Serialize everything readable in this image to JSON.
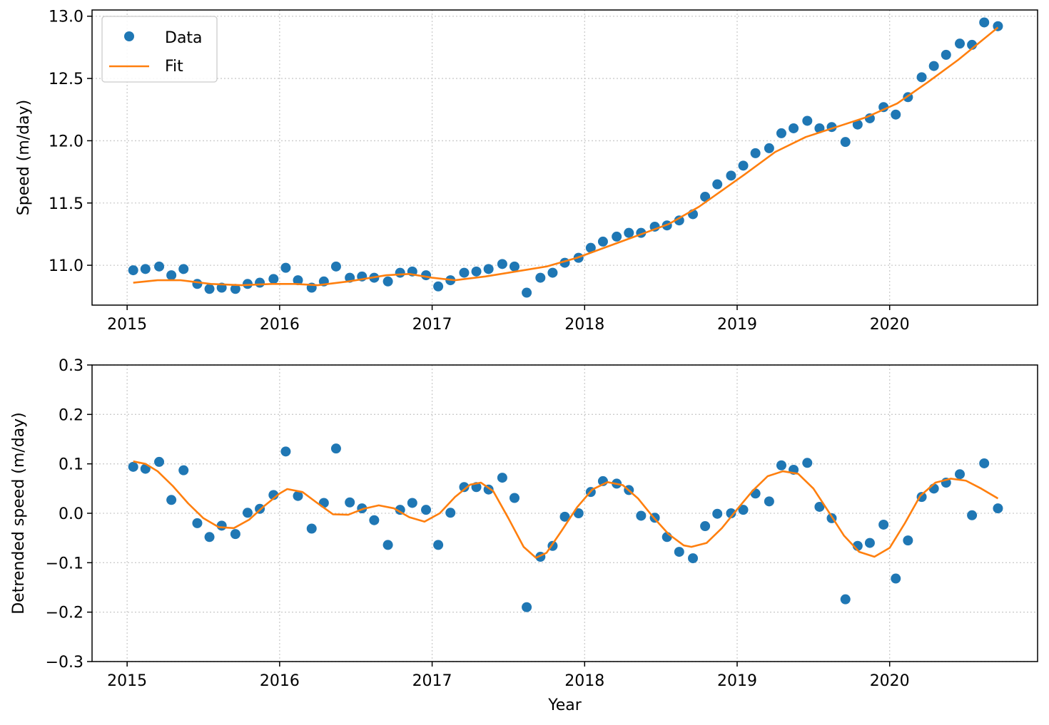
{
  "colors": {
    "data": "#1f77b4",
    "fit": "#ff7f0e",
    "grid": "#cccccc"
  },
  "chart_data": [
    {
      "type": "scatter",
      "title": "",
      "xlabel": "",
      "ylabel": "Speed (m/day)",
      "xlim": [
        2014.77,
        2020.97
      ],
      "ylim": [
        10.68,
        13.05
      ],
      "xticks": [
        2015,
        2016,
        2017,
        2018,
        2019,
        2020
      ],
      "yticks": [
        11.0,
        11.5,
        12.0,
        12.5,
        13.0
      ],
      "ytick_labels": [
        "11.0",
        "11.5",
        "12.0",
        "12.5",
        "13.0"
      ],
      "grid": true,
      "legend": {
        "position": "top-left",
        "entries": [
          "Data",
          "Fit"
        ]
      },
      "series": [
        {
          "name": "Data",
          "style": "markers",
          "x": [
            2015.04,
            2015.12,
            2015.21,
            2015.29,
            2015.37,
            2015.46,
            2015.54,
            2015.62,
            2015.71,
            2015.79,
            2015.87,
            2015.96,
            2016.04,
            2016.12,
            2016.21,
            2016.29,
            2016.37,
            2016.46,
            2016.54,
            2016.62,
            2016.71,
            2016.79,
            2016.87,
            2016.96,
            2017.04,
            2017.12,
            2017.21,
            2017.29,
            2017.37,
            2017.46,
            2017.54,
            2017.62,
            2017.71,
            2017.79,
            2017.87,
            2017.96,
            2018.04,
            2018.12,
            2018.21,
            2018.29,
            2018.37,
            2018.46,
            2018.54,
            2018.62,
            2018.71,
            2018.79,
            2018.87,
            2018.96,
            2019.04,
            2019.12,
            2019.21,
            2019.29,
            2019.37,
            2019.46,
            2019.54,
            2019.62,
            2019.71,
            2019.79,
            2019.87,
            2019.96,
            2020.04,
            2020.12,
            2020.21,
            2020.29,
            2020.37,
            2020.46,
            2020.54,
            2020.62,
            2020.71
          ],
          "y": [
            10.96,
            10.97,
            10.99,
            10.92,
            10.97,
            10.85,
            10.81,
            10.82,
            10.81,
            10.85,
            10.86,
            10.89,
            10.98,
            10.88,
            10.82,
            10.87,
            10.99,
            10.9,
            10.91,
            10.9,
            10.87,
            10.94,
            10.95,
            10.92,
            10.83,
            10.88,
            10.94,
            10.95,
            10.97,
            11.01,
            10.99,
            10.78,
            10.9,
            10.94,
            11.02,
            11.06,
            11.14,
            11.19,
            11.23,
            11.26,
            11.26,
            11.31,
            11.32,
            11.36,
            11.41,
            11.55,
            11.65,
            11.72,
            11.8,
            11.9,
            11.94,
            12.06,
            12.1,
            12.16,
            12.1,
            12.11,
            11.99,
            12.13,
            12.18,
            12.27,
            12.21,
            12.35,
            12.51,
            12.6,
            12.69,
            12.78,
            12.77,
            12.95,
            12.92
          ]
        },
        {
          "name": "Fit",
          "style": "line",
          "x": [
            2015.04,
            2015.2,
            2015.35,
            2015.55,
            2015.75,
            2015.95,
            2016.1,
            2016.25,
            2016.45,
            2016.7,
            2016.85,
            2017.0,
            2017.15,
            2017.35,
            2017.55,
            2017.75,
            2017.95,
            2018.15,
            2018.35,
            2018.55,
            2018.75,
            2018.9,
            2019.05,
            2019.25,
            2019.45,
            2019.65,
            2019.85,
            2020.05,
            2020.25,
            2020.45,
            2020.71
          ],
          "y": [
            10.86,
            10.88,
            10.88,
            10.85,
            10.84,
            10.85,
            10.85,
            10.84,
            10.87,
            10.92,
            10.93,
            10.9,
            10.88,
            10.91,
            10.95,
            10.99,
            11.06,
            11.15,
            11.24,
            11.33,
            11.47,
            11.6,
            11.73,
            11.91,
            12.03,
            12.11,
            12.19,
            12.3,
            12.47,
            12.65,
            12.91
          ]
        }
      ]
    },
    {
      "type": "scatter",
      "title": "",
      "xlabel": "Year",
      "ylabel": "Detrended speed (m/day)",
      "xlim": [
        2014.77,
        2020.97
      ],
      "ylim": [
        -0.3,
        0.3
      ],
      "xticks": [
        2015,
        2016,
        2017,
        2018,
        2019,
        2020
      ],
      "yticks": [
        -0.3,
        -0.2,
        -0.1,
        0.0,
        0.1,
        0.2,
        0.3
      ],
      "ytick_labels": [
        "−0.3",
        "−0.2",
        "−0.1",
        "0.0",
        "0.1",
        "0.2",
        "0.3"
      ],
      "grid": true,
      "series": [
        {
          "name": "Data",
          "style": "markers",
          "x": [
            2015.04,
            2015.12,
            2015.21,
            2015.29,
            2015.37,
            2015.46,
            2015.54,
            2015.62,
            2015.71,
            2015.79,
            2015.87,
            2015.96,
            2016.04,
            2016.12,
            2016.21,
            2016.29,
            2016.37,
            2016.46,
            2016.54,
            2016.62,
            2016.71,
            2016.79,
            2016.87,
            2016.96,
            2017.04,
            2017.12,
            2017.21,
            2017.29,
            2017.37,
            2017.46,
            2017.54,
            2017.62,
            2017.71,
            2017.79,
            2017.87,
            2017.96,
            2018.04,
            2018.12,
            2018.21,
            2018.29,
            2018.37,
            2018.46,
            2018.54,
            2018.62,
            2018.71,
            2018.79,
            2018.87,
            2018.96,
            2019.04,
            2019.12,
            2019.21,
            2019.29,
            2019.37,
            2019.46,
            2019.54,
            2019.62,
            2019.71,
            2019.79,
            2019.87,
            2019.96,
            2020.04,
            2020.12,
            2020.21,
            2020.29,
            2020.37,
            2020.46,
            2020.54,
            2020.62,
            2020.71
          ],
          "y": [
            0.094,
            0.09,
            0.104,
            0.027,
            0.087,
            -0.02,
            -0.048,
            -0.025,
            -0.042,
            0.001,
            0.009,
            0.037,
            0.125,
            0.035,
            -0.031,
            0.021,
            0.131,
            0.022,
            0.01,
            -0.014,
            -0.064,
            0.007,
            0.021,
            0.007,
            -0.064,
            0.001,
            0.053,
            0.053,
            0.048,
            0.072,
            0.031,
            -0.19,
            -0.088,
            -0.066,
            -0.007,
            0.0,
            0.043,
            0.065,
            0.06,
            0.047,
            -0.005,
            -0.009,
            -0.048,
            -0.078,
            -0.091,
            -0.026,
            -0.001,
            0.0,
            0.007,
            0.04,
            0.024,
            0.097,
            0.088,
            0.102,
            0.013,
            -0.01,
            -0.174,
            -0.066,
            -0.06,
            -0.023,
            -0.132,
            -0.055,
            0.033,
            0.05,
            0.062,
            0.079,
            -0.004,
            0.101,
            0.01
          ]
        },
        {
          "name": "Fit",
          "style": "line",
          "x": [
            2015.04,
            2015.12,
            2015.2,
            2015.3,
            2015.4,
            2015.5,
            2015.6,
            2015.7,
            2015.8,
            2015.9,
            2016.0,
            2016.05,
            2016.15,
            2016.25,
            2016.35,
            2016.45,
            2016.55,
            2016.65,
            2016.75,
            2016.85,
            2016.95,
            2017.05,
            2017.15,
            2017.25,
            2017.32,
            2017.4,
            2017.5,
            2017.6,
            2017.68,
            2017.75,
            2017.85,
            2017.95,
            2018.05,
            2018.15,
            2018.25,
            2018.35,
            2018.45,
            2018.55,
            2018.65,
            2018.7,
            2018.8,
            2018.9,
            2019.0,
            2019.1,
            2019.2,
            2019.3,
            2019.4,
            2019.5,
            2019.6,
            2019.7,
            2019.8,
            2019.9,
            2020.0,
            2020.1,
            2020.2,
            2020.3,
            2020.4,
            2020.5,
            2020.6,
            2020.71
          ],
          "y": [
            0.105,
            0.1,
            0.085,
            0.055,
            0.02,
            -0.01,
            -0.028,
            -0.03,
            -0.013,
            0.015,
            0.04,
            0.049,
            0.043,
            0.02,
            -0.002,
            -0.003,
            0.009,
            0.016,
            0.01,
            -0.008,
            -0.017,
            0.0,
            0.033,
            0.058,
            0.062,
            0.045,
            -0.01,
            -0.068,
            -0.09,
            -0.08,
            -0.035,
            0.012,
            0.048,
            0.063,
            0.057,
            0.03,
            -0.008,
            -0.042,
            -0.065,
            -0.068,
            -0.06,
            -0.03,
            0.008,
            0.045,
            0.075,
            0.085,
            0.08,
            0.05,
            0.003,
            -0.045,
            -0.078,
            -0.088,
            -0.07,
            -0.02,
            0.035,
            0.062,
            0.07,
            0.066,
            0.05,
            0.03
          ]
        }
      ]
    }
  ]
}
